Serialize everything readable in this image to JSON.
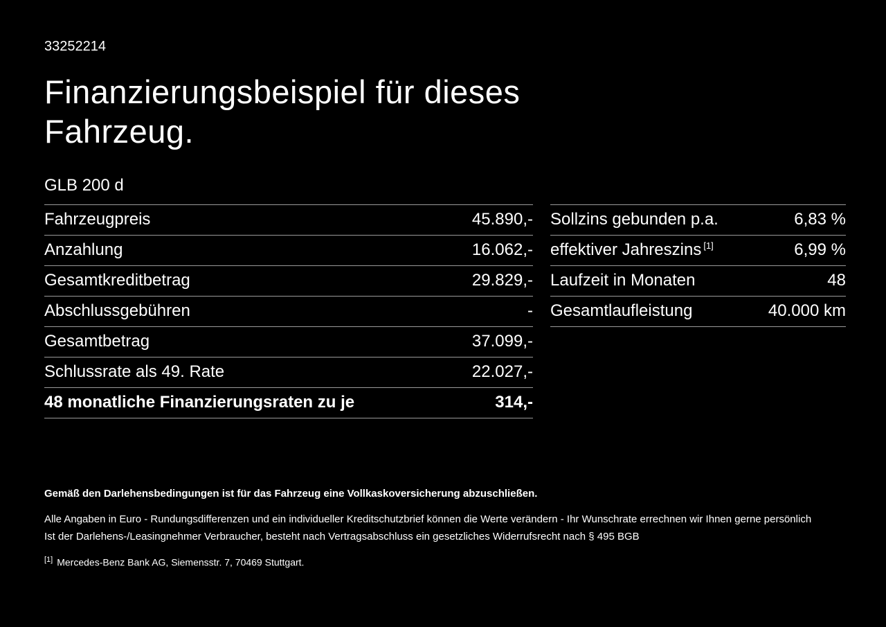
{
  "page": {
    "id": "33252214",
    "title": "Finanzierungsbeispiel für dieses Fahrzeug.",
    "model": "GLB 200 d"
  },
  "left_table": {
    "rows": [
      {
        "label": "Fahrzeugpreis",
        "value": "45.890,-"
      },
      {
        "label": "Anzahlung",
        "value": "16.062,-"
      },
      {
        "label": "Gesamtkreditbetrag",
        "value": "29.829,-"
      },
      {
        "label": "Abschlussgebühren",
        "value": "-"
      },
      {
        "label": "Gesamtbetrag",
        "value": "37.099,-"
      },
      {
        "label": "Schlussrate als 49. Rate",
        "value": "22.027,-"
      },
      {
        "label": "48 monatliche Finanzierungsraten zu je",
        "value": "314,-"
      }
    ]
  },
  "right_table": {
    "rows": [
      {
        "label": "Sollzins gebunden p.a.",
        "value": "6,83 %"
      },
      {
        "label": "effektiver Jahreszins",
        "sup": "[1]",
        "value": "6,99 %"
      },
      {
        "label": "Laufzeit in Monaten",
        "value": "48"
      },
      {
        "label": "Gesamtlaufleistung",
        "value": "40.000 km"
      }
    ]
  },
  "footer": {
    "insurance_note": "Gemäß den Darlehensbedingungen ist für das Fahrzeug eine Vollkaskoversicherung abzuschließen.",
    "disclaimer_line1": "Alle Angaben in Euro - Rundungsdifferenzen und ein individueller Kreditschutzbrief können die Werte verändern - Ihr Wunschrate errechnen wir Ihnen gerne persönlich",
    "disclaimer_line2": "Ist der Darlehens-/Leasingnehmer Verbraucher, besteht nach Vertragsabschluss ein gesetzliches Widerrufsrecht nach § 495 BGB",
    "footnote_marker": "[1]",
    "footnote_text": "Mercedes-Benz Bank AG, Siemensstr. 7, 70469 Stuttgart."
  },
  "colors": {
    "background": "#000000",
    "text": "#ffffff",
    "divider": "#9b9b9b"
  }
}
